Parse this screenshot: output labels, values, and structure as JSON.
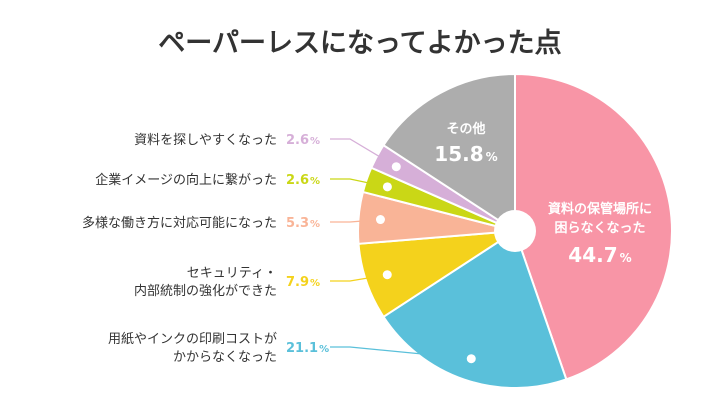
{
  "chart_data": {
    "type": "pie",
    "title": "ペーパーレスになってよかった点",
    "unit": "%",
    "slices": [
      {
        "label": "資料の保管場所に困らなくなった",
        "value": 44.7,
        "display": "44.7",
        "color": "#f895a6"
      },
      {
        "label": "用紙やインクの印刷コストがかからなくなった",
        "value": 21.1,
        "display": "21.1",
        "color": "#5ac0da"
      },
      {
        "label": "セキュリティ・内部統制の強化ができた",
        "value": 7.9,
        "display": "7.9",
        "color": "#f4d21c"
      },
      {
        "label": "多様な働き方に対応可能になった",
        "value": 5.3,
        "display": "5.3",
        "color": "#f9b497"
      },
      {
        "label": "企業イメージの向上に繋がった",
        "value": 2.6,
        "display": "2.6",
        "color": "#cad716"
      },
      {
        "label": "資料を探しやすくなった",
        "value": 2.6,
        "display": "2.6",
        "color": "#d6afd8"
      },
      {
        "label": "その他",
        "value": 15.8,
        "display": "15.8",
        "color": "#adadad"
      }
    ]
  }
}
